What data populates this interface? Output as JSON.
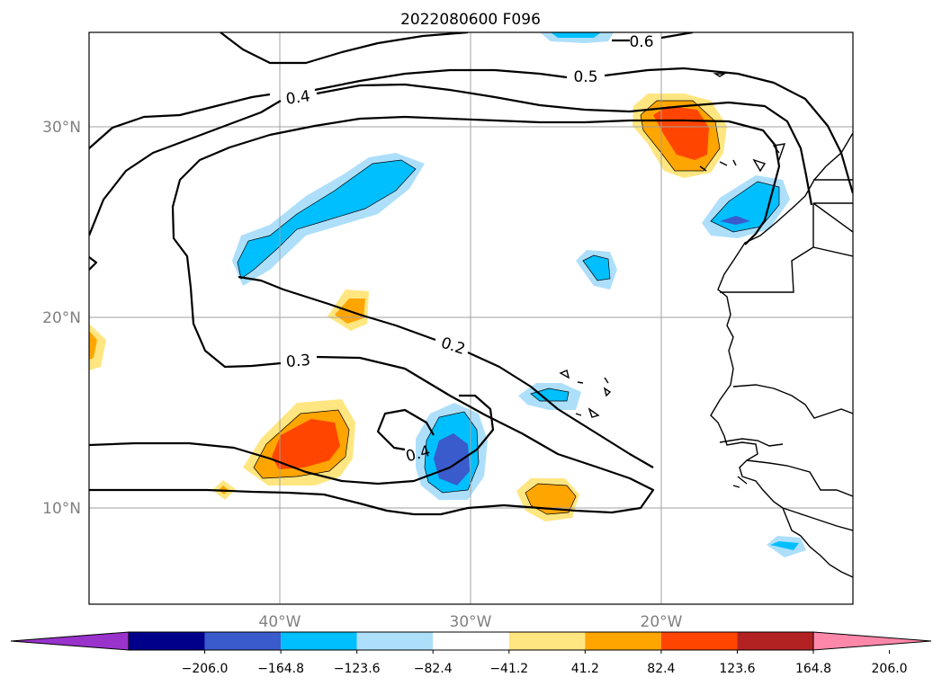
{
  "title": "2022080600 F096",
  "map": {
    "lat_labels": [
      "30°N",
      "20°N",
      "10°N"
    ],
    "lon_labels": [
      "40°W",
      "30°W",
      "20°W"
    ],
    "contour_labels": [
      "0.6",
      "0.5",
      "0.4",
      "0.3",
      "0.2",
      "0.4"
    ]
  },
  "colorbar": {
    "extend": "both",
    "ticks": [
      "−206.0",
      "−164.8",
      "−123.6",
      "−82.4",
      "−41.2",
      "41.2",
      "82.4",
      "123.6",
      "164.8",
      "206.0"
    ],
    "colors": {
      "under": "#9933CC",
      "bins": [
        "#00008B",
        "#3A5BCC",
        "#00BFFF",
        "#ADDFFB",
        "#FFFFFF",
        "#FFE680",
        "#FFA500",
        "#FF4500",
        "#B22222"
      ],
      "over": "#FF88AA"
    }
  }
}
